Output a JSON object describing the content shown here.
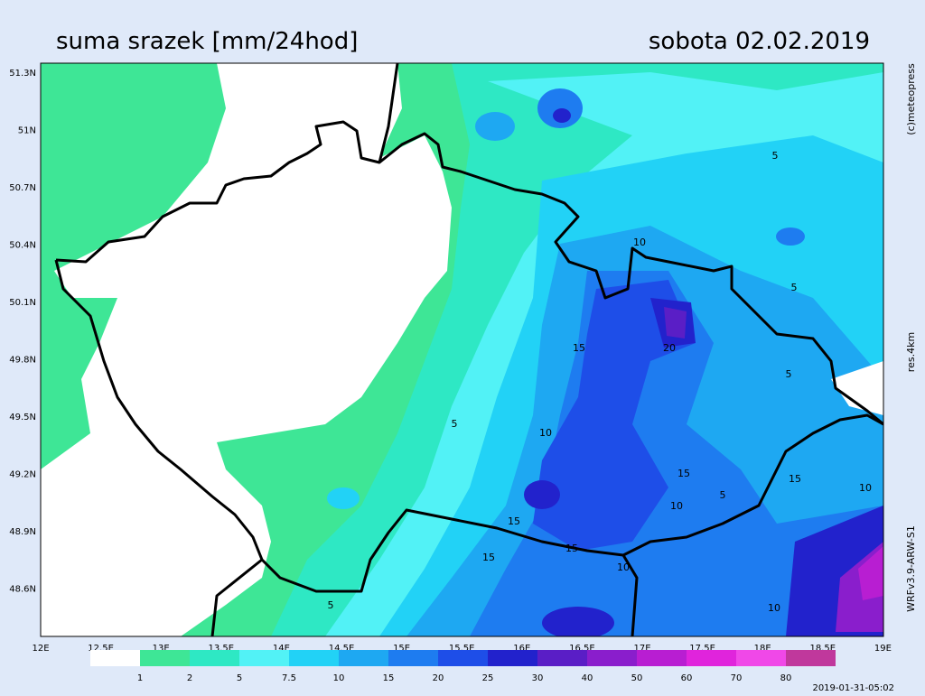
{
  "header": {
    "title": "suma srazek [mm/24hod]",
    "date": "sobota 02.02.2019"
  },
  "lat_labels": [
    "51.3N",
    "51N",
    "50.7N",
    "50.4N",
    "50.1N",
    "49.8N",
    "49.5N",
    "49.2N",
    "48.9N",
    "48.6N"
  ],
  "lon_labels": [
    "12E",
    "12.5E",
    "13E",
    "13.5E",
    "14E",
    "14.5E",
    "15E",
    "15.5E",
    "16E",
    "16.5E",
    "17E",
    "17.5E",
    "18E",
    "18.5E",
    "19E"
  ],
  "legend": {
    "labels": [
      "1",
      "2",
      "5",
      "7.5",
      "10",
      "15",
      "20",
      "25",
      "30",
      "40",
      "50",
      "60",
      "70",
      "80"
    ],
    "colors": [
      "#ffffff",
      "#3ee696",
      "#2ee8c4",
      "#52f2f6",
      "#22d2f6",
      "#1ea8f2",
      "#1e7cf0",
      "#1e4ee8",
      "#2222cc",
      "#5a1ec6",
      "#8a1ecc",
      "#b81ed2",
      "#e024dc",
      "#f048e8",
      "#c0389c"
    ]
  },
  "side_texts": {
    "copyright": "(c)meteopress",
    "resolution": "res.4km",
    "model": "WRFv3.9-ARW-S1"
  },
  "timestamp": "2019-01-31-05:02",
  "contour_labels": [
    "5",
    "10",
    "5",
    "15",
    "20",
    "5",
    "10",
    "5",
    "15",
    "15",
    "5",
    "15",
    "10",
    "15",
    "10",
    "5",
    "10",
    "10",
    "15"
  ]
}
